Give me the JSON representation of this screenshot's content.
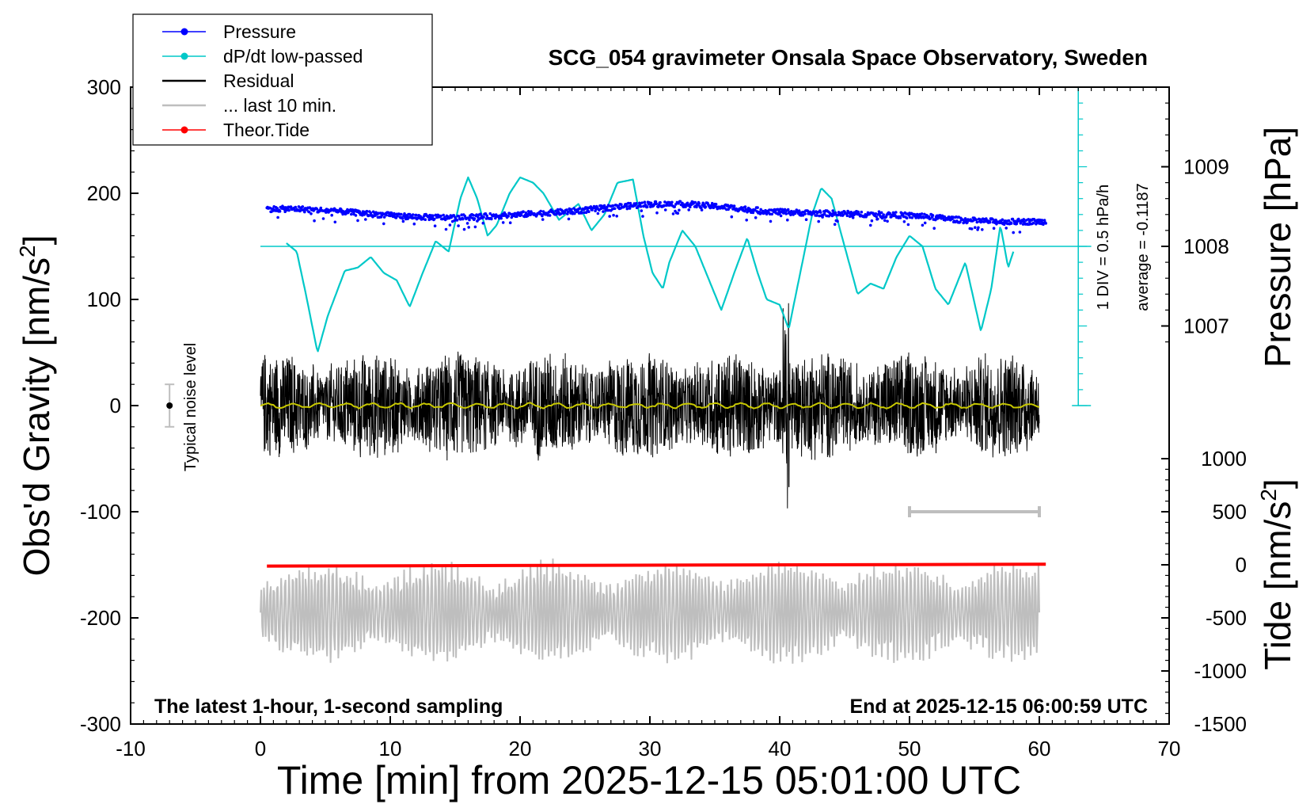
{
  "chart_data": {
    "type": "line",
    "title": "SCG_054 gravimeter Onsala Space Observatory, Sweden",
    "xlabel": "Time [min] from 2025-12-15 05:01:00 UTC",
    "ylabel_left": "Obs'd Gravity [nm/s",
    "ylabel_left_sup": "2",
    "ylabel_left_end": "]",
    "ylabel_pressure": "Pressure [hPa]",
    "ylabel_tide": "Tide [nm/s",
    "ylabel_tide_sup": "2",
    "ylabel_tide_end": "]",
    "xlim": [
      -10,
      70
    ],
    "ylim": [
      -300,
      300
    ],
    "x_ticks": [
      "-10",
      "0",
      "10",
      "20",
      "30",
      "40",
      "50",
      "60",
      "70"
    ],
    "x_tick_values": [
      -10,
      0,
      10,
      20,
      30,
      40,
      50,
      60,
      70
    ],
    "y_ticks": [
      "-300",
      "-200",
      "-100",
      "0",
      "100",
      "200",
      "300"
    ],
    "y_tick_values": [
      -300,
      -200,
      -100,
      0,
      100,
      200,
      300
    ],
    "pressure_ticks": [
      "1007",
      "1008",
      "1009"
    ],
    "pressure_tick_values": [
      1007,
      1008,
      1009
    ],
    "pressure_axis": {
      "gravity_at_1008": 150,
      "nm_per_hPa": 75
    },
    "tide_ticks": [
      "1000",
      "500",
      "0",
      "-500",
      "-1000",
      "-1500"
    ],
    "tide_tick_values": [
      1000,
      500,
      0,
      -500,
      -1000,
      -1500
    ],
    "tide_axis": {
      "gravity_at_0": -150,
      "nm_per_tide_unit": 0.1
    },
    "legend": [
      {
        "label": "Pressure",
        "color": "#0000ff",
        "marker": true
      },
      {
        "label": "dP/dt low-passed",
        "color": "#00c8c8",
        "marker": true
      },
      {
        "label": "Residual",
        "color": "#000000",
        "marker": false
      },
      {
        "label": "... last 10 min.",
        "color": "#bebebe",
        "marker": false
      },
      {
        "label": "Theor.Tide",
        "color": "#ff0000",
        "marker": true
      }
    ],
    "series": {
      "pressure": {
        "name": "Pressure",
        "color": "#0000ff",
        "x": [
          0.5,
          3,
          6,
          9,
          12,
          15,
          18,
          21,
          24,
          27,
          30,
          33,
          36,
          39,
          42,
          45,
          48,
          51,
          54,
          57,
          60.5
        ],
        "hPa": [
          1008.47,
          1008.47,
          1008.44,
          1008.4,
          1008.37,
          1008.36,
          1008.38,
          1008.41,
          1008.44,
          1008.49,
          1008.53,
          1008.53,
          1008.49,
          1008.44,
          1008.42,
          1008.41,
          1008.4,
          1008.38,
          1008.33,
          1008.31,
          1008.31
        ]
      },
      "dpdt": {
        "name": "dP/dt low-passed",
        "color": "#00c8c8",
        "x": [
          2,
          2.8,
          3.5,
          4.4,
          5.2,
          6.5,
          7.5,
          8.5,
          9.5,
          10.5,
          11.5,
          12.5,
          13.5,
          14.5,
          15.4,
          16,
          16.7,
          17.5,
          18.2,
          19.2,
          20,
          21,
          21.8,
          23,
          24.5,
          25.5,
          26.5,
          27.5,
          28.7,
          29.5,
          30.2,
          31,
          31.5,
          32.5,
          33.5,
          34.5,
          35.5,
          36.5,
          37.5,
          38.3,
          39,
          40,
          40.7,
          41.5,
          42.5,
          43.2,
          44,
          45,
          46,
          47,
          48,
          49,
          50,
          51,
          52,
          53,
          54.3,
          55.5,
          56.3,
          57,
          57.6,
          58
        ],
        "y": [
          153,
          145,
          105,
          50,
          85,
          127,
          130,
          140,
          125,
          118,
          93,
          125,
          155,
          145,
          195,
          215,
          195,
          160,
          170,
          200,
          215,
          210,
          200,
          175,
          190,
          165,
          180,
          210,
          213,
          160,
          125,
          110,
          135,
          165,
          150,
          120,
          90,
          125,
          158,
          125,
          100,
          95,
          72,
          120,
          180,
          205,
          195,
          150,
          105,
          115,
          110,
          140,
          160,
          150,
          110,
          95,
          135,
          70,
          110,
          170,
          130,
          145
        ]
      },
      "residual": {
        "name": "Residual",
        "color": "#000000",
        "x_range": [
          0,
          60
        ],
        "typical_amplitude": 40,
        "min": -110,
        "max": 100
      },
      "residual_10min": {
        "name": "... last 10 min.",
        "color": "#bebebe",
        "x_range": [
          0,
          60
        ],
        "center": -195,
        "typical_amplitude": 30
      },
      "tide": {
        "name": "Theor.Tide",
        "color": "#ff0000",
        "x": [
          0.5,
          60.5
        ],
        "y": [
          -12,
          5
        ]
      },
      "lowpass": {
        "name": "low-passed residual",
        "color": "#c8c800",
        "x_range": [
          0,
          60
        ],
        "center": 0
      }
    },
    "noise_marker": {
      "label": "Typical noise level",
      "x": -7,
      "y": 0,
      "err": 20
    },
    "ten_min_bar": {
      "x_start": 50,
      "x_end": 60,
      "y": -100
    },
    "scale_bar_label": "1 DIV = 0.5 hPa/h",
    "average_label": "average = -0.1187",
    "footer_left": "The latest 1-hour, 1-second sampling",
    "footer_right": "End at 2025-12-15 06:00:59 UTC"
  }
}
